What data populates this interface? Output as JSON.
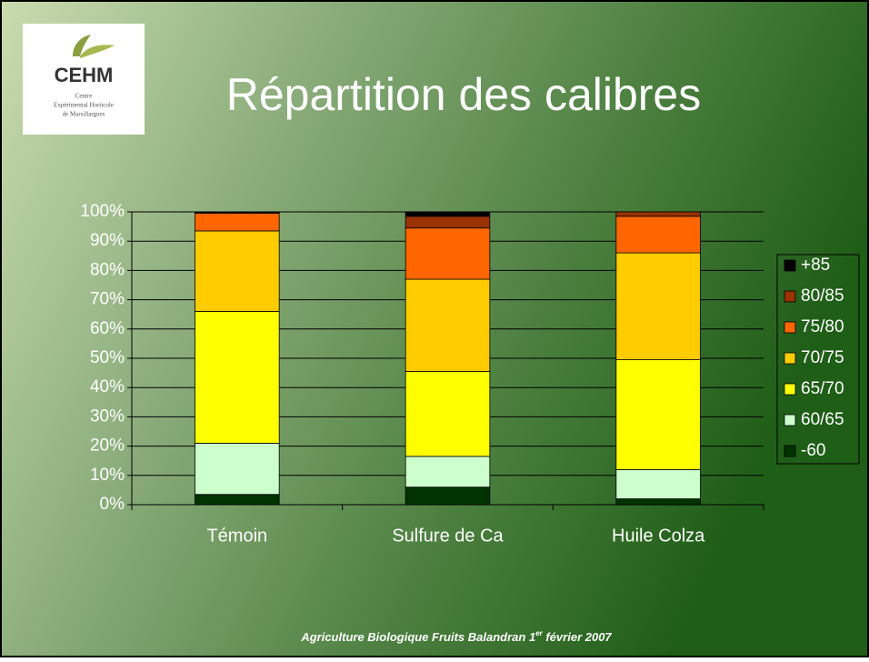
{
  "logo": {
    "name": "CEHM",
    "line1": "Centre",
    "line2": "Expérimental Horticole",
    "line3": "de Marsillargues"
  },
  "chart_data": {
    "type": "bar",
    "stacked": true,
    "title": "Répartition des calibres",
    "categories": [
      "Témoin",
      "Sulfure de Ca",
      "Huile Colza"
    ],
    "series": [
      {
        "name": "-60",
        "color": "#003300",
        "values": [
          3.5,
          6,
          2
        ]
      },
      {
        "name": "60/65",
        "color": "#ccffcc",
        "values": [
          17.5,
          10.5,
          10
        ]
      },
      {
        "name": "65/70",
        "color": "#ffff00",
        "values": [
          45,
          29,
          37.5
        ]
      },
      {
        "name": "70/75",
        "color": "#ffcc00",
        "values": [
          27.5,
          31.5,
          36.5
        ]
      },
      {
        "name": "75/80",
        "color": "#ff6600",
        "values": [
          6,
          17.5,
          12.5
        ]
      },
      {
        "name": "80/85",
        "color": "#993300",
        "values": [
          0.3,
          4,
          1.5
        ]
      },
      {
        "name": "+85",
        "color": "#000000",
        "values": [
          0.2,
          1.5,
          0
        ]
      }
    ],
    "ylim": [
      0,
      100
    ],
    "yticks": [
      {
        "value": 0,
        "label": "0%"
      },
      {
        "value": 10,
        "label": "10%"
      },
      {
        "value": 20,
        "label": "20%"
      },
      {
        "value": 30,
        "label": "30%"
      },
      {
        "value": 40,
        "label": "40%"
      },
      {
        "value": 50,
        "label": "50%"
      },
      {
        "value": 60,
        "label": "60%"
      },
      {
        "value": 70,
        "label": "70%"
      },
      {
        "value": 80,
        "label": "80%"
      },
      {
        "value": 90,
        "label": "90%"
      },
      {
        "value": 100,
        "label": "100%"
      }
    ],
    "grid": true,
    "legend": "right"
  },
  "footer": {
    "before": "Agriculture Biologique Fruits  Balandran 1",
    "sup": "er",
    "after": " février 2007"
  }
}
